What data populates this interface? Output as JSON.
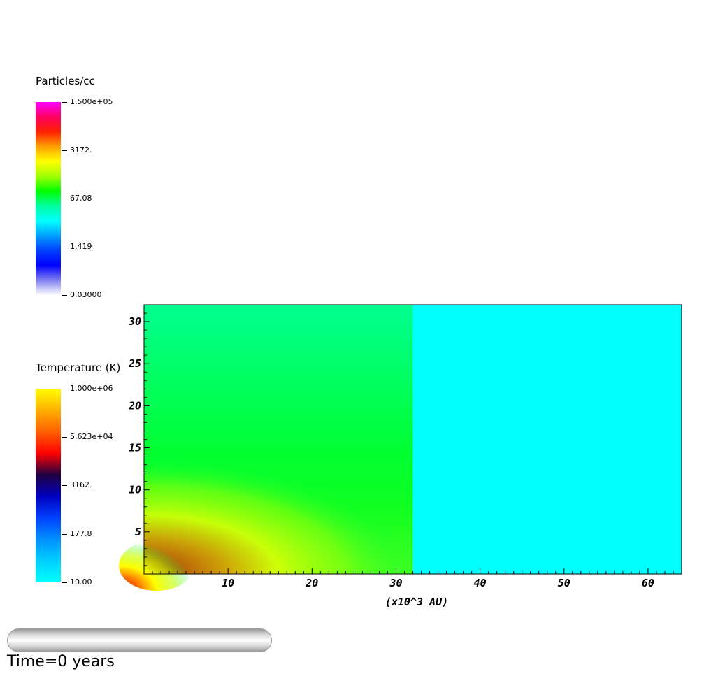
{
  "chart_data": {
    "type": "heatmap",
    "xlabel": "(x10^3 AU)",
    "ylabel": "",
    "xlim": [
      0,
      64
    ],
    "ylim": [
      0,
      32
    ],
    "x_ticks": [
      10,
      20,
      30,
      40,
      50,
      60
    ],
    "y_ticks": [
      5,
      10,
      15,
      20,
      25,
      30
    ],
    "field_regions": [
      {
        "x_range": [
          0,
          32
        ],
        "y_range": [
          0,
          32
        ],
        "description_level": "green gradient, brightest near y=12"
      },
      {
        "x_range": [
          32,
          64
        ],
        "y_range": [
          0,
          32
        ],
        "color": "#00ffff"
      }
    ],
    "hot_spot": {
      "x": 1.5,
      "y": 1.0,
      "color": "#e01000"
    },
    "legends": [
      {
        "title": "Particles/cc",
        "ticks": [
          "1.500e+05",
          "3172.",
          "67.08",
          "1.419",
          "0.03000"
        ],
        "colors": [
          "#ff00ff",
          "#ff0060",
          "#ff2000",
          "#ffa000",
          "#ffff00",
          "#a0ff00",
          "#00ff00",
          "#00ffa0",
          "#00ffff",
          "#00a0ff",
          "#0040ff",
          "#0000ff",
          "#8080f0",
          "#ffffff"
        ]
      },
      {
        "title": "Temperature (K)",
        "ticks": [
          "1.000e+06",
          "5.623e+04",
          "3162.",
          "177.8",
          "10.00"
        ],
        "colors": [
          "#ffff00",
          "#ffb000",
          "#ff6000",
          "#ff0000",
          "#200040",
          "#0000c0",
          "#0040ff",
          "#0090ff",
          "#00d0ff",
          "#00ffff"
        ]
      }
    ]
  },
  "time_label": "Time=0 years",
  "colors": {
    "background": "#ffffff",
    "right_half": "#00ffff",
    "left_base": "#00ff40"
  }
}
